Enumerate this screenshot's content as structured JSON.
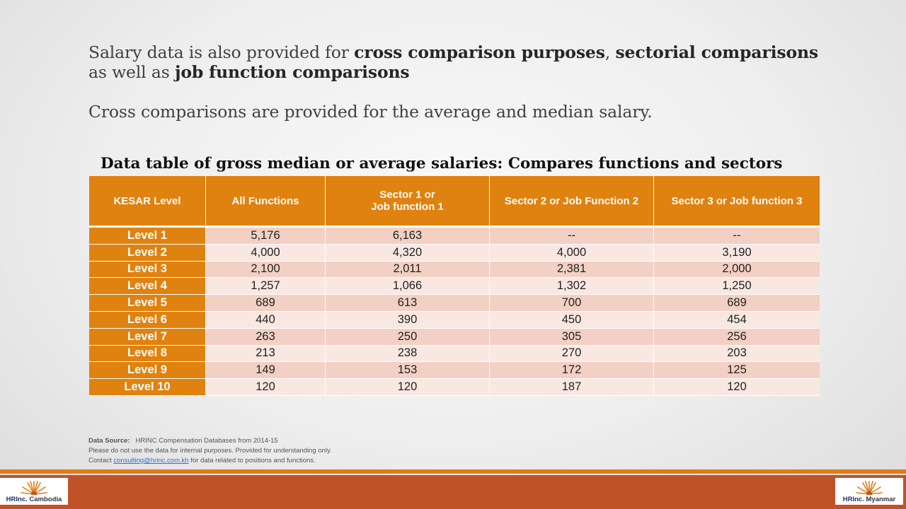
{
  "intro": {
    "line1_a": "Salary data is also provided for ",
    "line1_b1": "cross comparison purposes",
    "line1_c": ", ",
    "line1_b2": "sectorial comparisons",
    "line1_d": " as well as ",
    "line1_b3": "job function comparisons",
    "line2": "Cross comparisons are provided for the average and median salary."
  },
  "table": {
    "title": "Data table of gross median or average salaries: Compares functions and sectors",
    "headers": [
      "KESAR Level",
      "All Functions",
      "Sector 1 or\nJob function 1",
      "Sector 2 or Job Function 2",
      "Sector 3 or Job function 3"
    ],
    "rows": [
      [
        "Level 1",
        "5,176",
        "6,163",
        "--",
        "--"
      ],
      [
        "Level 2",
        "4,000",
        "4,320",
        "4,000",
        "3,190"
      ],
      [
        "Level 3",
        "2,100",
        "2,011",
        "2,381",
        "2,000"
      ],
      [
        "Level 4",
        "1,257",
        "1,066",
        "1,302",
        "1,250"
      ],
      [
        "Level 5",
        "689",
        "613",
        "700",
        "689"
      ],
      [
        "Level 6",
        "440",
        "390",
        "450",
        "454"
      ],
      [
        "Level 7",
        "263",
        "250",
        "305",
        "256"
      ],
      [
        "Level 8",
        "213",
        "238",
        "270",
        "203"
      ],
      [
        "Level 9",
        "149",
        "153",
        "172",
        "125"
      ],
      [
        "Level 10",
        "120",
        "120",
        "187",
        "120"
      ]
    ]
  },
  "notes": {
    "source_label": "Data Source:",
    "source_text": "HRINC Compensation Databases from 2014-15",
    "disclaimer": "Please do not use the data for internal purposes.  Provided for understanding only.",
    "contact_prefix": "Contact ",
    "contact_email": "consulting@hrinc.com.kh",
    "contact_suffix": " for data related to positions and functions."
  },
  "logos": {
    "left": {
      "brand": "HRInc.",
      "country": "Cambodia",
      "icon": "hrinc-sunburst-logo"
    },
    "right": {
      "brand": "HRInc.",
      "country": "Myanmar",
      "icon": "hrinc-sunburst-logo"
    }
  },
  "colors": {
    "accent": "#e0820f",
    "row_dark": "#f2d0c3",
    "row_light": "#f9e8e2",
    "footer": "#bf5327",
    "footer_line": "#e07c17",
    "link": "#2f6fc7"
  }
}
